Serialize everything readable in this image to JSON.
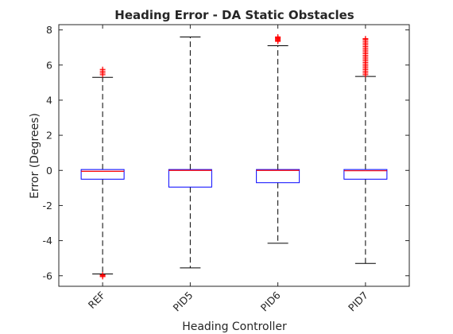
{
  "chart_data": {
    "type": "box",
    "title": "Heading Error - DA Static Obstacles",
    "xlabel": "Heading Controller",
    "ylabel": "Error (Degrees)",
    "ylim": [
      -6.6,
      8.3
    ],
    "yticks": [
      -6,
      -4,
      -2,
      0,
      2,
      4,
      6,
      8
    ],
    "categories": [
      "REF",
      "PID5",
      "PID6",
      "PID7"
    ],
    "boxes": [
      {
        "category": "REF",
        "whisker_low": -5.9,
        "q1": -0.5,
        "median": -0.05,
        "q3": 0.05,
        "whisker_high": 5.3,
        "outliers": [
          5.45,
          5.55,
          5.65,
          5.75,
          -5.95,
          -6.0,
          -6.05
        ]
      },
      {
        "category": "PID5",
        "whisker_low": -5.55,
        "q1": -0.95,
        "median": 0.0,
        "q3": 0.05,
        "whisker_high": 7.6,
        "outliers": []
      },
      {
        "category": "PID6",
        "whisker_low": -4.15,
        "q1": -0.7,
        "median": 0.0,
        "q3": 0.05,
        "whisker_high": 7.1,
        "outliers": [
          7.35,
          7.4,
          7.45,
          7.5,
          7.55,
          7.6
        ]
      },
      {
        "category": "PID7",
        "whisker_low": -5.3,
        "q1": -0.5,
        "median": -0.02,
        "q3": 0.05,
        "whisker_high": 5.35,
        "outliers": [
          5.45,
          5.55,
          5.65,
          5.75,
          5.85,
          5.95,
          6.05,
          6.15,
          6.25,
          6.35,
          6.45,
          6.55,
          6.65,
          6.75,
          6.85,
          6.95,
          7.05,
          7.15,
          7.25,
          7.35,
          7.45,
          7.5
        ]
      }
    ],
    "colors": {
      "box": "#0000ff",
      "median": "#ff0000",
      "whisker": "#000000",
      "outlier": "#ff0000"
    },
    "grid": false
  }
}
